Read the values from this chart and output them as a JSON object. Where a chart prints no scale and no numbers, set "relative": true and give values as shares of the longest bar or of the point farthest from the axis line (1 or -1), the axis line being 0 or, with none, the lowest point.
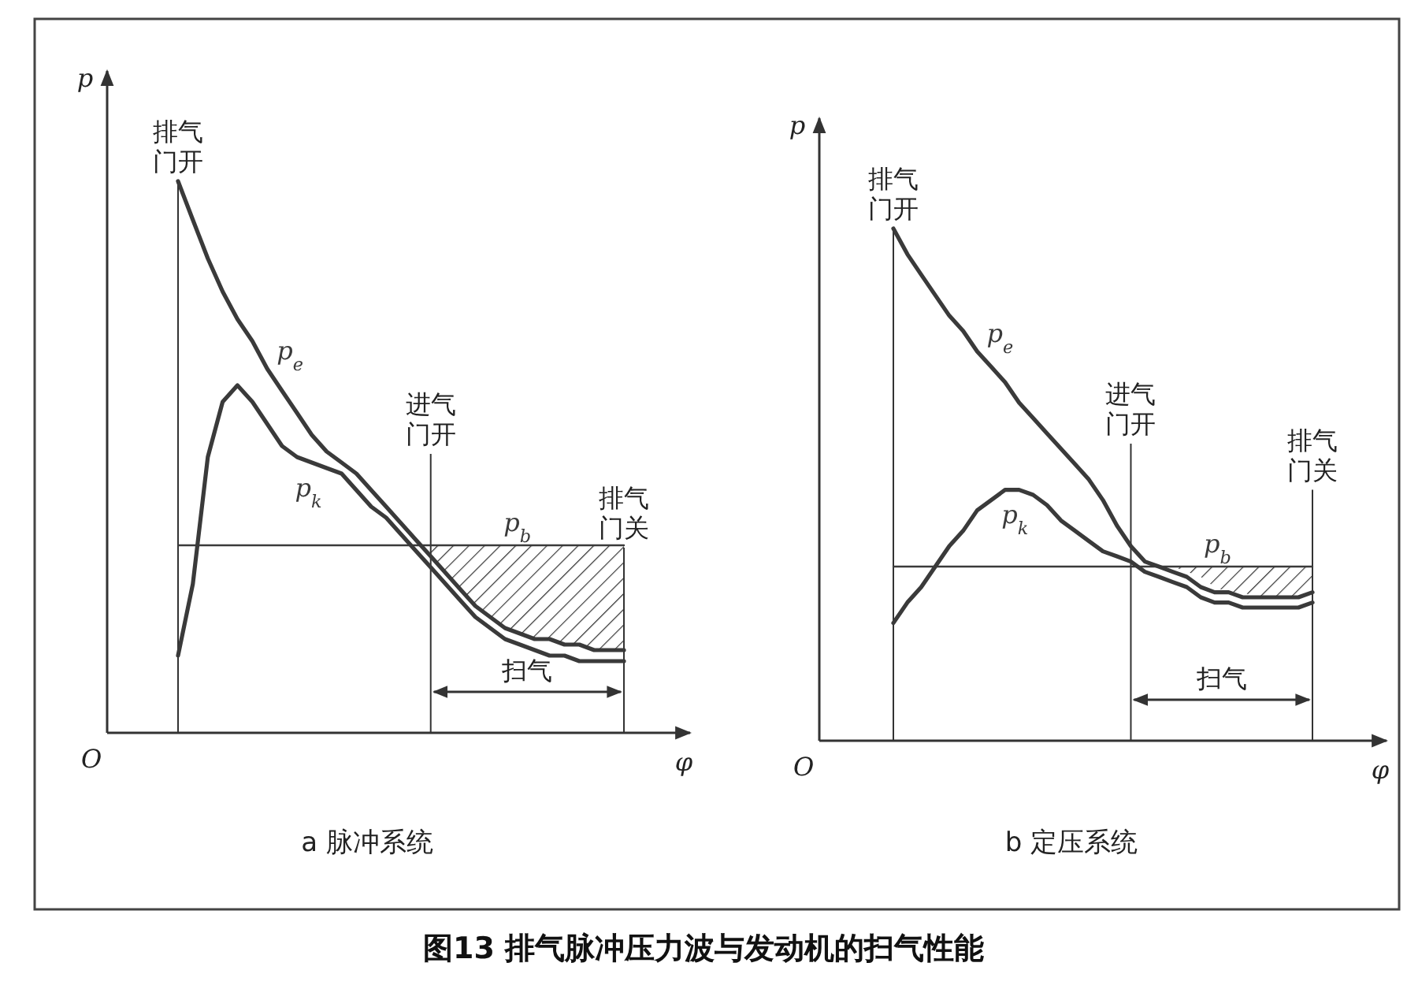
{
  "chart_data": [
    {
      "type": "line",
      "title": "a 脉冲系统",
      "xlabel": "φ",
      "ylabel": "p",
      "relative": true,
      "legend": false,
      "grid": false,
      "marker": "none",
      "line_style": "solid",
      "categories": [
        null,
        null,
        null,
        null,
        null,
        null,
        null,
        null,
        null,
        null,
        null,
        null,
        null,
        null,
        null,
        null,
        null,
        null,
        null,
        null,
        null,
        null,
        null,
        null,
        null,
        null,
        null,
        null,
        null,
        null,
        null
      ],
      "series": [
        {
          "name": "p$_{e}$",
          "color": "#3a3a3a",
          "values": [
            1.0,
            0.93,
            0.86,
            0.8,
            0.75,
            0.71,
            0.66,
            0.62,
            0.58,
            0.54,
            0.51,
            0.49,
            0.47,
            0.44,
            0.41,
            0.38,
            0.35,
            0.32,
            0.29,
            0.26,
            0.23,
            0.21,
            0.19,
            0.18,
            0.17,
            0.17,
            0.16,
            0.16,
            0.15,
            0.15,
            0.15
          ]
        },
        {
          "name": "p$_{k}$",
          "color": "#3a3a3a",
          "values": [
            0.14,
            0.27,
            0.5,
            0.6,
            0.63,
            0.6,
            0.56,
            0.52,
            0.5,
            0.49,
            0.48,
            0.47,
            0.44,
            0.41,
            0.39,
            0.36,
            0.33,
            0.3,
            0.27,
            0.24,
            0.21,
            0.19,
            0.17,
            0.16,
            0.15,
            0.14,
            0.14,
            0.13,
            0.13,
            0.13,
            0.13
          ]
        },
        {
          "name": "p$_{b}$",
          "color": "#3a3a3a",
          "values": [
            0.34,
            0.34,
            0.34,
            0.34,
            0.34,
            0.34,
            0.34,
            0.34,
            0.34,
            0.34,
            0.34,
            0.34,
            0.34,
            0.34,
            0.34,
            0.34,
            0.34,
            0.34,
            0.34,
            0.34,
            0.34,
            0.34,
            0.34,
            0.34,
            0.34,
            0.34,
            0.34,
            0.34,
            0.34,
            0.34,
            0.34
          ],
          "upper": [
            null,
            null,
            null,
            null,
            null,
            null,
            null,
            null,
            null,
            null,
            null,
            null,
            null,
            null,
            null,
            null,
            null,
            0.34,
            0.34,
            0.34,
            0.34,
            0.34,
            0.34,
            0.34,
            0.34,
            0.34,
            0.34,
            0.34,
            0.34,
            0.34,
            0.34
          ],
          "lower": [
            null,
            null,
            null,
            null,
            null,
            null,
            null,
            null,
            null,
            null,
            null,
            null,
            null,
            null,
            null,
            null,
            null,
            0.32,
            0.29,
            0.26,
            0.23,
            0.21,
            0.19,
            0.18,
            0.17,
            0.17,
            0.16,
            0.16,
            0.15,
            0.15,
            0.15
          ]
        }
      ],
      "annotations": [
        "O",
        "排气门开",
        "进气门开",
        "排气门关",
        "扫气",
        "图13 排气脉冲压力波与发动机的扫气性能"
      ]
    },
    {
      "type": "line",
      "title": "b 定压系统",
      "xlabel": "φ",
      "ylabel": "p",
      "relative": true,
      "legend": false,
      "grid": false,
      "marker": "none",
      "line_style": "solid",
      "categories": [
        null,
        null,
        null,
        null,
        null,
        null,
        null,
        null,
        null,
        null,
        null,
        null,
        null,
        null,
        null,
        null,
        null,
        null,
        null,
        null,
        null,
        null,
        null,
        null,
        null,
        null,
        null,
        null,
        null,
        null,
        null
      ],
      "series": [
        {
          "name": "p$_{e}$",
          "color": "#3a3a3a",
          "values": [
            1.0,
            0.95,
            0.91,
            0.87,
            0.83,
            0.8,
            0.76,
            0.73,
            0.7,
            0.66,
            0.63,
            0.6,
            0.57,
            0.54,
            0.51,
            0.47,
            0.42,
            0.38,
            0.35,
            0.34,
            0.33,
            0.32,
            0.3,
            0.29,
            0.29,
            0.28,
            0.28,
            0.28,
            0.28,
            0.28,
            0.29
          ]
        },
        {
          "name": "p$_{k}$",
          "color": "#3a3a3a",
          "values": [
            0.23,
            0.27,
            0.3,
            0.34,
            0.38,
            0.41,
            0.45,
            0.47,
            0.49,
            0.49,
            0.48,
            0.46,
            0.43,
            0.41,
            0.39,
            0.37,
            0.36,
            0.35,
            0.33,
            0.32,
            0.31,
            0.3,
            0.28,
            0.27,
            0.27,
            0.26,
            0.26,
            0.26,
            0.26,
            0.26,
            0.27
          ]
        },
        {
          "name": "p$_{b}$",
          "color": "#3a3a3a",
          "values": [
            0.34,
            0.34,
            0.34,
            0.34,
            0.34,
            0.34,
            0.34,
            0.34,
            0.34,
            0.34,
            0.34,
            0.34,
            0.34,
            0.34,
            0.34,
            0.34,
            0.34,
            0.34,
            0.34,
            0.34,
            0.34,
            0.34,
            0.34,
            0.34,
            0.34,
            0.34,
            0.34,
            0.34,
            0.34,
            0.34,
            0.34
          ],
          "upper": [
            null,
            null,
            null,
            null,
            null,
            null,
            null,
            null,
            null,
            null,
            null,
            null,
            null,
            null,
            null,
            null,
            null,
            0.34,
            0.34,
            0.34,
            0.34,
            0.34,
            0.34,
            0.34,
            0.34,
            0.34,
            0.34,
            0.34,
            0.34,
            0.34,
            0.34
          ],
          "lower": [
            null,
            null,
            null,
            null,
            null,
            null,
            null,
            null,
            null,
            null,
            null,
            null,
            null,
            null,
            null,
            null,
            null,
            0.34,
            0.34,
            0.34,
            0.34,
            0.33,
            0.32,
            0.3,
            0.29,
            0.29,
            0.28,
            0.28,
            0.28,
            0.28,
            0.29
          ]
        }
      ],
      "annotations": [
        "O",
        "排气门开",
        "进气门开",
        "排气门关",
        "扫气"
      ]
    }
  ]
}
